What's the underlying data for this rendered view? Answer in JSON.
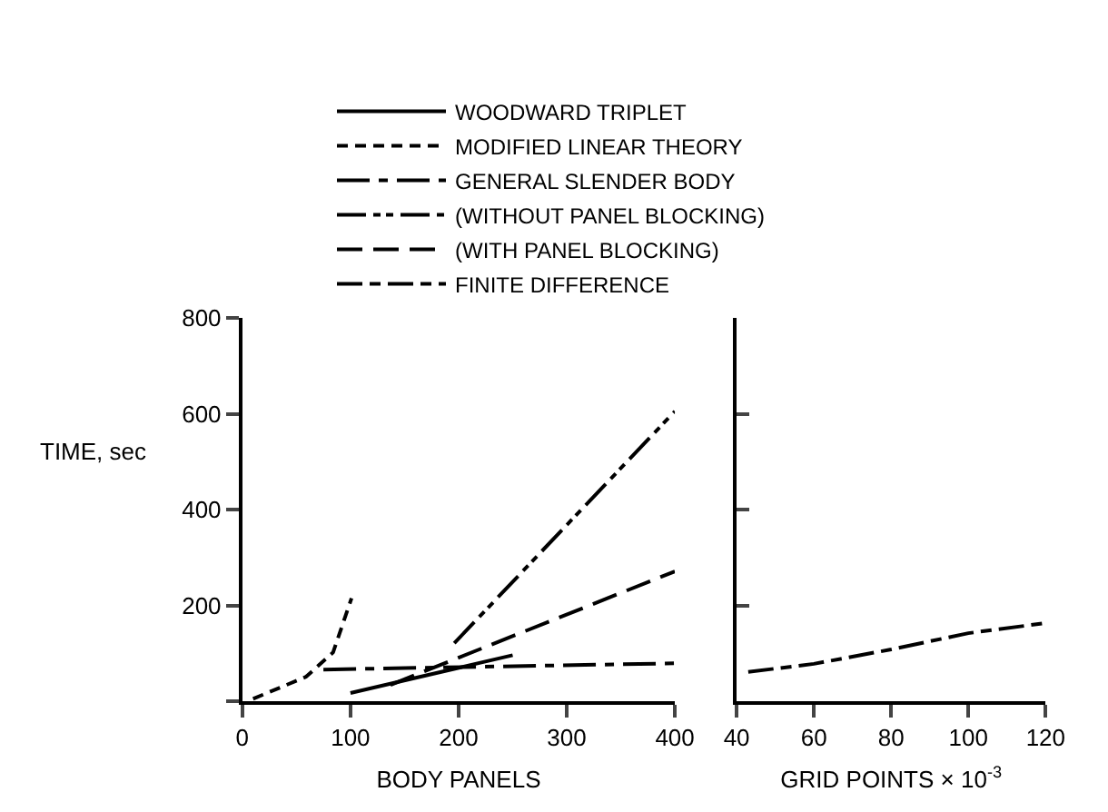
{
  "chart_data": [
    {
      "type": "line",
      "xlabel": "BODY PANELS",
      "ylabel": "TIME, sec",
      "xlim": [
        0,
        400
      ],
      "xticks": [
        0,
        100,
        200,
        300,
        400
      ],
      "ylim": [
        0,
        800
      ],
      "yticks": [
        {
          "value": 0,
          "label": null
        },
        200,
        400,
        600,
        800
      ],
      "legend": "top",
      "marker": "none",
      "series": [
        {
          "name": "WOODWARD TRIPLET",
          "color": "#000000",
          "line_style": "solid",
          "x": [
            100,
            250
          ],
          "values": [
            17,
            96
          ]
        },
        {
          "name": "MODIFIED LINEAR THEORY",
          "color": "#000000",
          "line_style": "dashed",
          "x": [
            10,
            59,
            84,
            101
          ],
          "values": [
            5,
            51,
            102,
            215
          ]
        },
        {
          "name": "GENERAL SLENDER BODY",
          "color": "#000000",
          "line_style": "longdashdot",
          "x": [
            75,
            400
          ],
          "values": [
            66,
            79
          ]
        },
        {
          "name": "(WITHOUT PANEL BLOCKING)",
          "color": "#000000",
          "line_style": "longdashdotdot",
          "x": [
            196,
            400
          ],
          "values": [
            121,
            605
          ]
        },
        {
          "name": "(WITH PANEL BLOCKING)",
          "color": "#000000",
          "line_style": "longdash",
          "x": [
            137,
            400
          ],
          "values": [
            34,
            271
          ]
        }
      ]
    },
    {
      "type": "line",
      "xlabel": "GRID POINTS × 10$^{-3}$",
      "xlim": [
        40,
        120
      ],
      "xticks": [
        40,
        60,
        80,
        100,
        120
      ],
      "ylim": [
        0,
        800
      ],
      "yticks": [
        0,
        200,
        400,
        600,
        800
      ],
      "tick_labels": "x",
      "legend": "top",
      "marker": "none",
      "series": [
        {
          "name": "FINITE DIFFERENCE",
          "color": "#000000",
          "line_style": "longdashdash",
          "x": [
            43,
            60,
            80,
            100,
            120
          ],
          "values": [
            61,
            78,
            108,
            142,
            163
          ]
        }
      ]
    }
  ]
}
